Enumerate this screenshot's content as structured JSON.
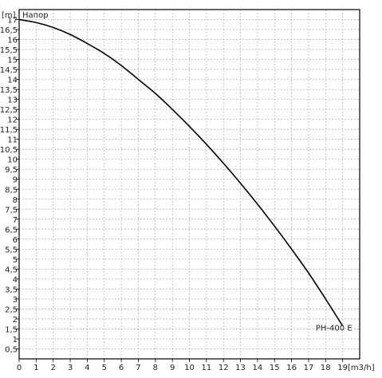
{
  "chart_data": {
    "type": "line",
    "title": "Напор",
    "xlabel": "[m3/h]",
    "ylabel": "[m]",
    "xlim": [
      0,
      20
    ],
    "ylim": [
      0,
      17.5
    ],
    "grid": true,
    "x_ticks": [
      "0",
      "1",
      "2",
      "3",
      "4",
      "5",
      "6",
      "7",
      "8",
      "9",
      "10",
      "11",
      "12",
      "13",
      "14",
      "15",
      "16",
      "17",
      "18",
      "19"
    ],
    "y_ticks": [
      "0,5",
      "1",
      "1,5",
      "2",
      "2,5",
      "3",
      "3,5",
      "4",
      "4,5",
      "5",
      "5,5",
      "6",
      "6,5",
      "7",
      "7,5",
      "8",
      "8,5",
      "9",
      "9,5",
      "10",
      "10,5",
      "11",
      "11,5",
      "12",
      "12,5",
      "13",
      "13,5",
      "14",
      "14,5",
      "15",
      "15,5",
      "16",
      "16,5",
      "17"
    ],
    "series": [
      {
        "name": "PH-400 E",
        "x": [
          0,
          1,
          2,
          3,
          4,
          5,
          6,
          7,
          8,
          9,
          10,
          11,
          12,
          13,
          14,
          15,
          16,
          17,
          18,
          19
        ],
        "y": [
          17.0,
          16.85,
          16.6,
          16.25,
          15.8,
          15.3,
          14.7,
          14.0,
          13.3,
          12.5,
          11.65,
          10.75,
          9.8,
          8.8,
          7.75,
          6.65,
          5.5,
          4.3,
          3.0,
          1.65
        ]
      }
    ]
  }
}
